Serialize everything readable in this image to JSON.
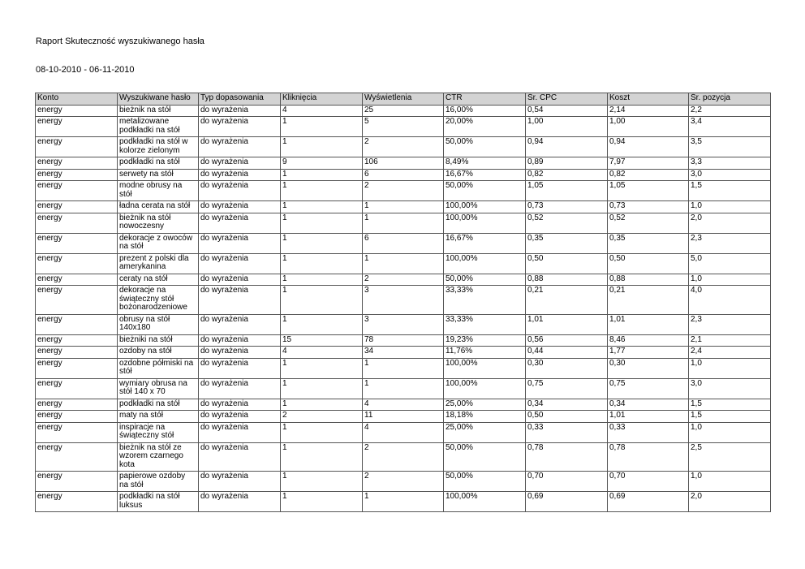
{
  "header": {
    "title": "Raport Skuteczność wyszukiwanego hasła",
    "date_range": "08-10-2010 - 06-11-2010"
  },
  "table": {
    "columns": [
      "Konto",
      "Wyszukiwane hasło",
      "Typ dopasowania",
      "Kliknięcia",
      "Wyświetlenia",
      "CTR",
      "Śr. CPC",
      "Koszt",
      "Śr. pozycja"
    ],
    "rows": [
      [
        "energy",
        "bieżnik na stół",
        "do wyrażenia",
        "4",
        "25",
        "16,00%",
        "0,54",
        "2,14",
        "2,2"
      ],
      [
        "energy",
        "metalizowane podkładki na stół",
        "do wyrażenia",
        "1",
        "5",
        "20,00%",
        "1,00",
        "1,00",
        "3,4"
      ],
      [
        "energy",
        "podkładki na stół w kolorze zielonym",
        "do wyrażenia",
        "1",
        "2",
        "50,00%",
        "0,94",
        "0,94",
        "3,5"
      ],
      [
        "energy",
        "podkładki na stół",
        "do wyrażenia",
        "9",
        "106",
        "8,49%",
        "0,89",
        "7,97",
        "3,3"
      ],
      [
        "energy",
        "serwety na stół",
        "do wyrażenia",
        "1",
        "6",
        "16,67%",
        "0,82",
        "0,82",
        "3,0"
      ],
      [
        "energy",
        "modne obrusy na stół",
        "do wyrażenia",
        "1",
        "2",
        "50,00%",
        "1,05",
        "1,05",
        "1,5"
      ],
      [
        "energy",
        "ładna cerata na stół",
        "do wyrażenia",
        "1",
        "1",
        "100,00%",
        "0,73",
        "0,73",
        "1,0"
      ],
      [
        "energy",
        "bieżnik na stół nowoczesny",
        "do wyrażenia",
        "1",
        "1",
        "100,00%",
        "0,52",
        "0,52",
        "2,0"
      ],
      [
        "energy",
        "dekoracje z owoców na stół",
        "do wyrażenia",
        "1",
        "6",
        "16,67%",
        "0,35",
        "0,35",
        "2,3"
      ],
      [
        "energy",
        "prezent z polski dla amerykanina",
        "do wyrażenia",
        "1",
        "1",
        "100,00%",
        "0,50",
        "0,50",
        "5,0"
      ],
      [
        "energy",
        "ceraty na stół",
        "do wyrażenia",
        "1",
        "2",
        "50,00%",
        "0,88",
        "0,88",
        "1,0"
      ],
      [
        "energy",
        "dekoracje na świąteczny stół bożonarodzeniowe",
        "do wyrażenia",
        "1",
        "3",
        "33,33%",
        "0,21",
        "0,21",
        "4,0"
      ],
      [
        "energy",
        "obrusy na stół 140x180",
        "do wyrażenia",
        "1",
        "3",
        "33,33%",
        "1,01",
        "1,01",
        "2,3"
      ],
      [
        "energy",
        "bieżniki na stół",
        "do wyrażenia",
        "15",
        "78",
        "19,23%",
        "0,56",
        "8,46",
        "2,1"
      ],
      [
        "energy",
        "ozdoby na stół",
        "do wyrażenia",
        "4",
        "34",
        "11,76%",
        "0,44",
        "1,77",
        "2,4"
      ],
      [
        "energy",
        "ozdobne półmiski na stół",
        "do wyrażenia",
        "1",
        "1",
        "100,00%",
        "0,30",
        "0,30",
        "1,0"
      ],
      [
        "energy",
        "wymiary obrusa na stół 140 x 70",
        "do wyrażenia",
        "1",
        "1",
        "100,00%",
        "0,75",
        "0,75",
        "3,0"
      ],
      [
        "energy",
        "podkładki na stół",
        "do wyrażenia",
        "1",
        "4",
        "25,00%",
        "0,34",
        "0,34",
        "1,5"
      ],
      [
        "energy",
        "maty na stół",
        "do wyrażenia",
        "2",
        "11",
        "18,18%",
        "0,50",
        "1,01",
        "1,5"
      ],
      [
        "energy",
        "inspiracje na świąteczny stół",
        "do wyrażenia",
        "1",
        "4",
        "25,00%",
        "0,33",
        "0,33",
        "1,0"
      ],
      [
        "energy",
        "bieżnik na stół ze wzorem czarnego kota",
        "do wyrażenia",
        "1",
        "2",
        "50,00%",
        "0,78",
        "0,78",
        "2,5"
      ],
      [
        "energy",
        "papierowe ozdoby na stół",
        "do wyrażenia",
        "1",
        "2",
        "50,00%",
        "0,70",
        "0,70",
        "1,0"
      ],
      [
        "energy",
        "podkładki na stół luksus",
        "do wyrażenia",
        "1",
        "1",
        "100,00%",
        "0,69",
        "0,69",
        "2,0"
      ]
    ]
  }
}
